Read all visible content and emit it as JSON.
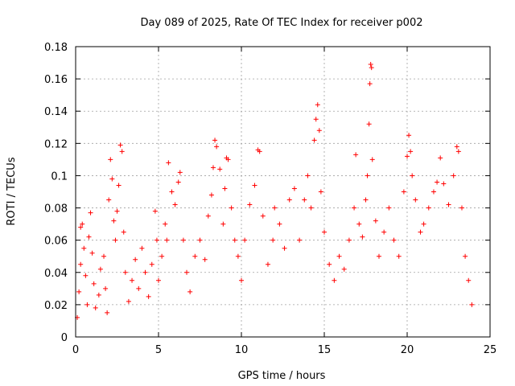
{
  "chart_data": {
    "type": "scatter",
    "title": "Day 089 of 2025, Rate Of TEC Index for receiver p002",
    "xlabel": "GPS time / hours",
    "ylabel": "ROTI / TECUs",
    "xlim": [
      0,
      25
    ],
    "ylim": [
      0,
      0.18
    ],
    "x_ticks": [
      "0",
      "5",
      "10",
      "15",
      "20",
      "25"
    ],
    "x_tick_values": [
      0,
      5,
      10,
      15,
      20,
      25
    ],
    "y_ticks": [
      "0",
      "0.02",
      "0.04",
      "0.06",
      "0.08",
      "0.1",
      "0.12",
      "0.14",
      "0.16",
      "0.18"
    ],
    "y_tick_values": [
      0,
      0.02,
      0.04,
      0.06,
      0.08,
      0.1,
      0.12,
      0.14,
      0.16,
      0.18
    ],
    "grid": true,
    "marker": "plus",
    "color": "#ff0000",
    "series": [
      {
        "name": "ROTI",
        "points": [
          [
            0.1,
            0.012
          ],
          [
            0.2,
            0.028
          ],
          [
            0.3,
            0.045
          ],
          [
            0.3,
            0.068
          ],
          [
            0.4,
            0.07
          ],
          [
            0.5,
            0.055
          ],
          [
            0.6,
            0.038
          ],
          [
            0.7,
            0.02
          ],
          [
            0.8,
            0.062
          ],
          [
            0.9,
            0.077
          ],
          [
            1.0,
            0.052
          ],
          [
            1.1,
            0.033
          ],
          [
            1.2,
            0.018
          ],
          [
            1.4,
            0.026
          ],
          [
            1.5,
            0.042
          ],
          [
            1.7,
            0.05
          ],
          [
            1.8,
            0.03
          ],
          [
            1.9,
            0.015
          ],
          [
            2.0,
            0.085
          ],
          [
            2.1,
            0.11
          ],
          [
            2.2,
            0.098
          ],
          [
            2.3,
            0.072
          ],
          [
            2.4,
            0.06
          ],
          [
            2.5,
            0.078
          ],
          [
            2.6,
            0.094
          ],
          [
            2.7,
            0.119
          ],
          [
            2.8,
            0.115
          ],
          [
            2.9,
            0.065
          ],
          [
            3.0,
            0.04
          ],
          [
            3.2,
            0.022
          ],
          [
            3.4,
            0.035
          ],
          [
            3.6,
            0.048
          ],
          [
            3.8,
            0.03
          ],
          [
            4.0,
            0.055
          ],
          [
            4.2,
            0.04
          ],
          [
            4.4,
            0.025
          ],
          [
            4.6,
            0.045
          ],
          [
            4.8,
            0.078
          ],
          [
            4.9,
            0.06
          ],
          [
            5.0,
            0.035
          ],
          [
            5.2,
            0.05
          ],
          [
            5.4,
            0.07
          ],
          [
            5.5,
            0.06
          ],
          [
            5.6,
            0.108
          ],
          [
            5.8,
            0.09
          ],
          [
            6.0,
            0.082
          ],
          [
            6.2,
            0.096
          ],
          [
            6.3,
            0.102
          ],
          [
            6.5,
            0.06
          ],
          [
            6.7,
            0.04
          ],
          [
            6.9,
            0.028
          ],
          [
            7.2,
            0.05
          ],
          [
            7.5,
            0.06
          ],
          [
            7.8,
            0.048
          ],
          [
            8.0,
            0.075
          ],
          [
            8.2,
            0.088
          ],
          [
            8.3,
            0.105
          ],
          [
            8.4,
            0.122
          ],
          [
            8.5,
            0.118
          ],
          [
            8.7,
            0.104
          ],
          [
            8.9,
            0.07
          ],
          [
            9.0,
            0.092
          ],
          [
            9.1,
            0.111
          ],
          [
            9.2,
            0.11
          ],
          [
            9.4,
            0.08
          ],
          [
            9.6,
            0.06
          ],
          [
            9.8,
            0.05
          ],
          [
            10.0,
            0.035
          ],
          [
            10.2,
            0.06
          ],
          [
            10.5,
            0.082
          ],
          [
            10.8,
            0.094
          ],
          [
            11.0,
            0.116
          ],
          [
            11.1,
            0.115
          ],
          [
            11.3,
            0.075
          ],
          [
            11.6,
            0.045
          ],
          [
            11.9,
            0.06
          ],
          [
            12.0,
            0.08
          ],
          [
            12.3,
            0.07
          ],
          [
            12.6,
            0.055
          ],
          [
            12.9,
            0.085
          ],
          [
            13.2,
            0.092
          ],
          [
            13.5,
            0.06
          ],
          [
            13.8,
            0.085
          ],
          [
            14.0,
            0.1
          ],
          [
            14.2,
            0.08
          ],
          [
            14.4,
            0.122
          ],
          [
            14.5,
            0.135
          ],
          [
            14.6,
            0.144
          ],
          [
            14.7,
            0.128
          ],
          [
            14.8,
            0.09
          ],
          [
            15.0,
            0.065
          ],
          [
            15.3,
            0.045
          ],
          [
            15.6,
            0.035
          ],
          [
            15.9,
            0.05
          ],
          [
            16.2,
            0.042
          ],
          [
            16.5,
            0.06
          ],
          [
            16.8,
            0.08
          ],
          [
            16.9,
            0.113
          ],
          [
            17.1,
            0.07
          ],
          [
            17.3,
            0.062
          ],
          [
            17.5,
            0.085
          ],
          [
            17.6,
            0.1
          ],
          [
            17.7,
            0.132
          ],
          [
            17.75,
            0.157
          ],
          [
            17.8,
            0.169
          ],
          [
            17.85,
            0.167
          ],
          [
            17.9,
            0.11
          ],
          [
            18.1,
            0.072
          ],
          [
            18.3,
            0.05
          ],
          [
            18.6,
            0.065
          ],
          [
            18.9,
            0.08
          ],
          [
            19.2,
            0.06
          ],
          [
            19.5,
            0.05
          ],
          [
            19.8,
            0.09
          ],
          [
            20.0,
            0.112
          ],
          [
            20.1,
            0.125
          ],
          [
            20.2,
            0.115
          ],
          [
            20.3,
            0.1
          ],
          [
            20.5,
            0.085
          ],
          [
            20.8,
            0.065
          ],
          [
            21.0,
            0.07
          ],
          [
            21.3,
            0.08
          ],
          [
            21.6,
            0.09
          ],
          [
            21.8,
            0.096
          ],
          [
            22.0,
            0.111
          ],
          [
            22.2,
            0.095
          ],
          [
            22.5,
            0.082
          ],
          [
            22.8,
            0.1
          ],
          [
            23.0,
            0.118
          ],
          [
            23.1,
            0.115
          ],
          [
            23.3,
            0.08
          ],
          [
            23.5,
            0.05
          ],
          [
            23.7,
            0.035
          ],
          [
            23.9,
            0.02
          ]
        ]
      }
    ]
  }
}
